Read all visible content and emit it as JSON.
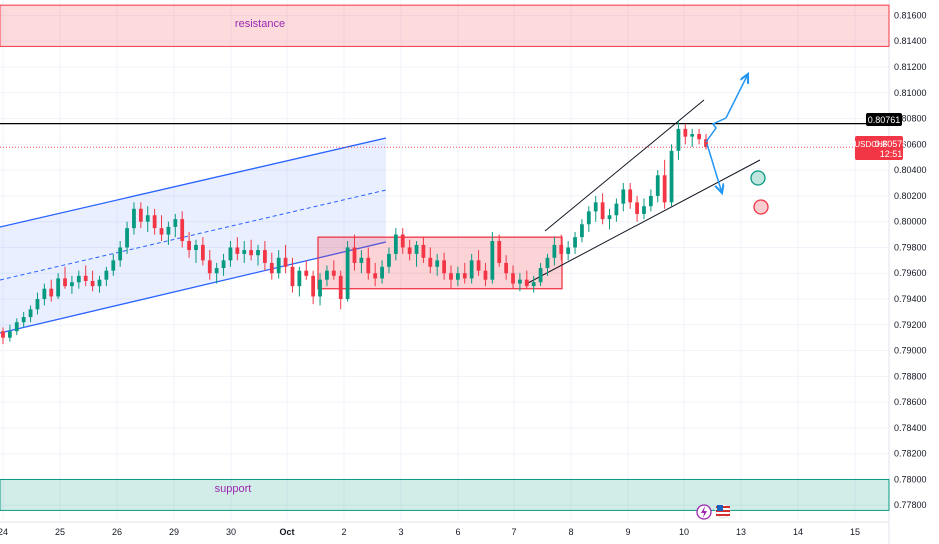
{
  "chart_data": {
    "type": "candlestick",
    "symbol": "USDCHF",
    "last_price": "0.80578",
    "countdown": "12:51",
    "level_label": "0.80761",
    "y_ticks": [
      "0.81600",
      "0.81400",
      "0.81200",
      "0.81000",
      "0.80800",
      "0.80600",
      "0.80400",
      "0.80200",
      "0.80000",
      "0.79800",
      "0.79600",
      "0.79400",
      "0.79200",
      "0.79000",
      "0.78800",
      "0.78600",
      "0.78400",
      "0.78200",
      "0.78000",
      "0.77800"
    ],
    "x_ticks": [
      "24",
      "25",
      "26",
      "29",
      "30",
      "Oct",
      "2",
      "3",
      "6",
      "7",
      "8",
      "9",
      "10",
      "13",
      "14",
      "15"
    ],
    "ylim": [
      0.7767,
      0.8172
    ],
    "zones": [
      {
        "label": "resistance",
        "from": 0.8136,
        "to": 0.8168,
        "color": "#f23645"
      },
      {
        "label": "support",
        "from": 0.7776,
        "to": 0.78,
        "color": "#089981"
      }
    ],
    "horizontal_level": 0.80761,
    "consolidation_box": {
      "from": 0.7948,
      "to": 0.7988
    },
    "colors": {
      "up": "#089981",
      "down": "#f23645",
      "channel": "#2962ff",
      "arrow": "#2196f3"
    },
    "candles": [
      [
        0.7915,
        0.7918,
        0.7905,
        0.791
      ],
      [
        0.791,
        0.792,
        0.7907,
        0.7915
      ],
      [
        0.7915,
        0.7925,
        0.7912,
        0.7922
      ],
      [
        0.7922,
        0.793,
        0.7918,
        0.7926
      ],
      [
        0.7926,
        0.7935,
        0.7922,
        0.7932
      ],
      [
        0.7932,
        0.7945,
        0.7928,
        0.794
      ],
      [
        0.794,
        0.7952,
        0.7935,
        0.7948
      ],
      [
        0.7948,
        0.7955,
        0.7938,
        0.7942
      ],
      [
        0.7942,
        0.796,
        0.794,
        0.7956
      ],
      [
        0.7956,
        0.7965,
        0.7948,
        0.795
      ],
      [
        0.795,
        0.7958,
        0.7944,
        0.7953
      ],
      [
        0.7953,
        0.7962,
        0.7948,
        0.7958
      ],
      [
        0.7958,
        0.7966,
        0.795,
        0.7954
      ],
      [
        0.7954,
        0.7962,
        0.7946,
        0.795
      ],
      [
        0.795,
        0.7958,
        0.7945,
        0.7955
      ],
      [
        0.7955,
        0.7965,
        0.795,
        0.7962
      ],
      [
        0.7962,
        0.7975,
        0.7958,
        0.797
      ],
      [
        0.797,
        0.7985,
        0.7965,
        0.798
      ],
      [
        0.798,
        0.8,
        0.7975,
        0.7995
      ],
      [
        0.7995,
        0.8015,
        0.799,
        0.801
      ],
      [
        0.801,
        0.8015,
        0.7995,
        0.8
      ],
      [
        0.8,
        0.8012,
        0.7992,
        0.8005
      ],
      [
        0.8005,
        0.801,
        0.799,
        0.7995
      ],
      [
        0.7995,
        0.8005,
        0.7985,
        0.799
      ],
      [
        0.799,
        0.8,
        0.7982,
        0.7996
      ],
      [
        0.7996,
        0.8006,
        0.7988,
        0.8002
      ],
      [
        0.8002,
        0.8008,
        0.798,
        0.7985
      ],
      [
        0.7985,
        0.7992,
        0.7972,
        0.7978
      ],
      [
        0.7978,
        0.7986,
        0.7968,
        0.7982
      ],
      [
        0.7982,
        0.7988,
        0.7966,
        0.797
      ],
      [
        0.797,
        0.7978,
        0.7955,
        0.796
      ],
      [
        0.796,
        0.7968,
        0.7952,
        0.7964
      ],
      [
        0.7964,
        0.7975,
        0.7958,
        0.797
      ],
      [
        0.797,
        0.7985,
        0.7965,
        0.798
      ],
      [
        0.798,
        0.7988,
        0.797,
        0.7975
      ],
      [
        0.7975,
        0.7985,
        0.7968,
        0.7978
      ],
      [
        0.7978,
        0.7986,
        0.797,
        0.7974
      ],
      [
        0.7974,
        0.7982,
        0.7966,
        0.7978
      ],
      [
        0.7978,
        0.7985,
        0.7962,
        0.7968
      ],
      [
        0.7968,
        0.7976,
        0.7955,
        0.796
      ],
      [
        0.796,
        0.7978,
        0.7956,
        0.7972
      ],
      [
        0.7972,
        0.7982,
        0.796,
        0.7965
      ],
      [
        0.7965,
        0.7972,
        0.7945,
        0.795
      ],
      [
        0.795,
        0.7965,
        0.7942,
        0.7962
      ],
      [
        0.7962,
        0.797,
        0.7955,
        0.7958
      ],
      [
        0.7958,
        0.7962,
        0.7936,
        0.7942
      ],
      [
        0.7942,
        0.796,
        0.7935,
        0.7955
      ],
      [
        0.7955,
        0.7966,
        0.795,
        0.7962
      ],
      [
        0.7962,
        0.797,
        0.7955,
        0.7958
      ],
      [
        0.7958,
        0.7962,
        0.7932,
        0.794
      ],
      [
        0.794,
        0.7985,
        0.7938,
        0.798
      ],
      [
        0.798,
        0.799,
        0.7962,
        0.7968
      ],
      [
        0.7968,
        0.7978,
        0.796,
        0.7972
      ],
      [
        0.7972,
        0.798,
        0.7955,
        0.796
      ],
      [
        0.796,
        0.7968,
        0.795,
        0.7956
      ],
      [
        0.7956,
        0.797,
        0.7952,
        0.7965
      ],
      [
        0.7965,
        0.798,
        0.796,
        0.7975
      ],
      [
        0.7975,
        0.7995,
        0.797,
        0.799
      ],
      [
        0.799,
        0.7995,
        0.7975,
        0.798
      ],
      [
        0.798,
        0.7986,
        0.797,
        0.7975
      ],
      [
        0.7975,
        0.7985,
        0.7965,
        0.7982
      ],
      [
        0.7982,
        0.7988,
        0.7968,
        0.7972
      ],
      [
        0.7972,
        0.798,
        0.796,
        0.7965
      ],
      [
        0.7965,
        0.7975,
        0.7958,
        0.797
      ],
      [
        0.797,
        0.7976,
        0.7955,
        0.796
      ],
      [
        0.796,
        0.7966,
        0.7948,
        0.7955
      ],
      [
        0.7955,
        0.7965,
        0.795,
        0.796
      ],
      [
        0.796,
        0.7968,
        0.7952,
        0.7956
      ],
      [
        0.7956,
        0.7975,
        0.7952,
        0.797
      ],
      [
        0.797,
        0.7978,
        0.7958,
        0.7962
      ],
      [
        0.7962,
        0.7968,
        0.795,
        0.7955
      ],
      [
        0.7955,
        0.7992,
        0.7952,
        0.7985
      ],
      [
        0.7985,
        0.799,
        0.7965,
        0.7968
      ],
      [
        0.7968,
        0.7974,
        0.7955,
        0.796
      ],
      [
        0.796,
        0.7966,
        0.7948,
        0.7952
      ],
      [
        0.7952,
        0.796,
        0.7946,
        0.7955
      ],
      [
        0.7955,
        0.7962,
        0.7948,
        0.795
      ],
      [
        0.795,
        0.7958,
        0.7945,
        0.7953
      ],
      [
        0.7953,
        0.7968,
        0.795,
        0.7964
      ],
      [
        0.7964,
        0.7975,
        0.7958,
        0.7972
      ],
      [
        0.7972,
        0.7988,
        0.7966,
        0.7982
      ],
      [
        0.7982,
        0.799,
        0.797,
        0.7975
      ],
      [
        0.7975,
        0.7985,
        0.797,
        0.798
      ],
      [
        0.798,
        0.7992,
        0.7975,
        0.7988
      ],
      [
        0.7988,
        0.8002,
        0.7984,
        0.7998
      ],
      [
        0.7998,
        0.8012,
        0.7992,
        0.8008
      ],
      [
        0.8008,
        0.802,
        0.8,
        0.8015
      ],
      [
        0.8015,
        0.8022,
        0.7998,
        0.8002
      ],
      [
        0.8002,
        0.801,
        0.7994,
        0.8005
      ],
      [
        0.8005,
        0.8018,
        0.8,
        0.8014
      ],
      [
        0.8014,
        0.803,
        0.8008,
        0.8025
      ],
      [
        0.8025,
        0.803,
        0.801,
        0.8015
      ],
      [
        0.8015,
        0.802,
        0.8,
        0.8006
      ],
      [
        0.8006,
        0.8018,
        0.8002,
        0.8012
      ],
      [
        0.8012,
        0.8025,
        0.8008,
        0.802
      ],
      [
        0.802,
        0.804,
        0.8015,
        0.8036
      ],
      [
        0.8036,
        0.8048,
        0.801,
        0.8015
      ],
      [
        0.8015,
        0.806,
        0.8012,
        0.8055
      ],
      [
        0.8055,
        0.8078,
        0.8048,
        0.8072
      ],
      [
        0.8072,
        0.8076,
        0.806,
        0.8066
      ],
      [
        0.8066,
        0.8072,
        0.8058,
        0.8068
      ],
      [
        0.8068,
        0.8072,
        0.806,
        0.8064
      ],
      [
        0.8064,
        0.8068,
        0.8056,
        0.8058
      ]
    ]
  },
  "controls": {
    "icon1": "lightning-icon",
    "icon2": "us-flag-icon"
  }
}
